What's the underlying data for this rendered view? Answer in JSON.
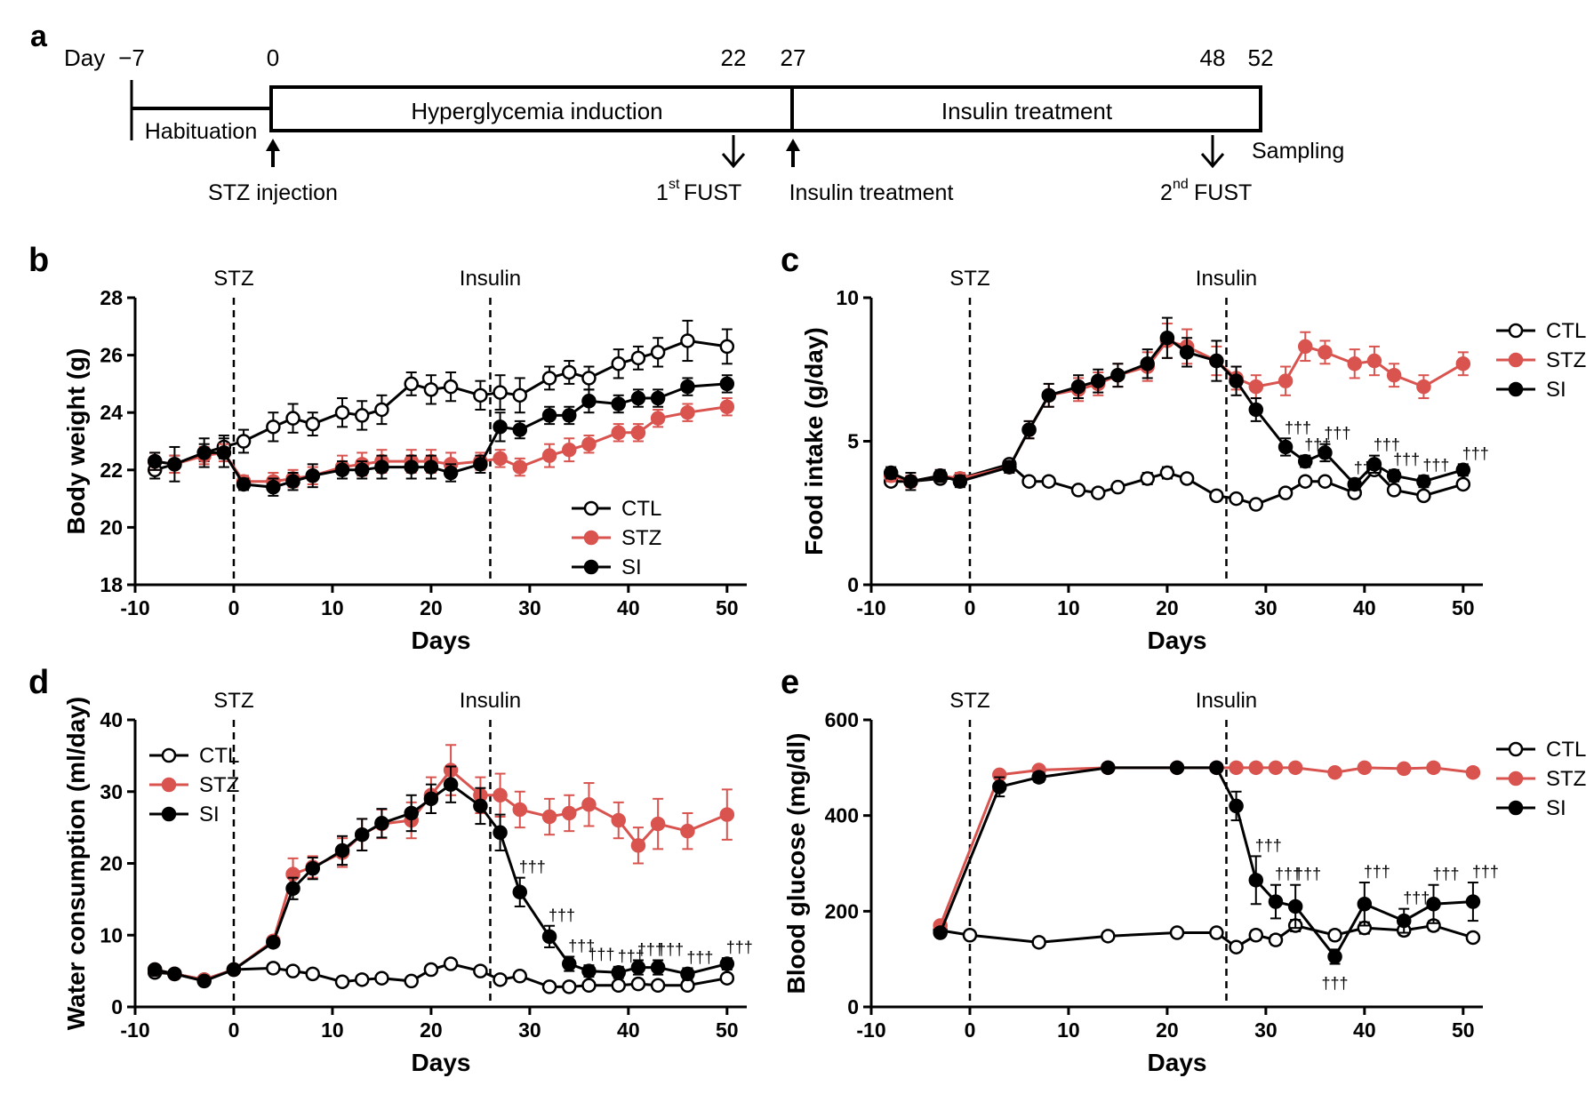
{
  "colors": {
    "ctl": "#000000",
    "stz": "#d9534f",
    "si": "#000000"
  },
  "timeline": {
    "panel_letter": "a",
    "day_label": "Day",
    "ticks": [
      "−7",
      "0",
      "22",
      "27",
      "48",
      "52"
    ],
    "habituation": "Habituation",
    "hyperglycemia": "Hyperglycemia induction",
    "insulin_phase": "Insulin treatment",
    "stz_injection": "STZ injection",
    "first_fust_sup": "st",
    "first_fust_num": "1",
    "first_fust_label": "FUST",
    "insulin_treatment": "Insulin treatment",
    "second_fust_num": "2",
    "second_fust_sup": "nd",
    "second_fust_label": "FUST",
    "sampling": "Sampling"
  },
  "chart_data": [
    {
      "panel": "b",
      "type": "line",
      "title": "",
      "xlabel": "Days",
      "ylabel": "Body weight (g)",
      "xlim": [
        -10,
        52
      ],
      "ylim": [
        18,
        28
      ],
      "xticks": [
        -10,
        0,
        10,
        20,
        30,
        40,
        50
      ],
      "yticks": [
        18,
        20,
        22,
        24,
        26,
        28
      ],
      "markers": [
        {
          "x": 0,
          "label": "STZ"
        },
        {
          "x": 26,
          "label": "Insulin"
        }
      ],
      "legend": "bottom-right",
      "dagger": "",
      "series": [
        {
          "name": "CTL",
          "x": [
            -8,
            -6,
            -3,
            -1,
            1,
            4,
            6,
            8,
            11,
            13,
            15,
            18,
            20,
            22,
            25,
            27,
            29,
            32,
            34,
            36,
            39,
            41,
            43,
            46,
            50
          ],
          "y": [
            22.0,
            22.2,
            22.6,
            22.8,
            23.0,
            23.5,
            23.8,
            23.6,
            24.0,
            23.9,
            24.1,
            25.0,
            24.8,
            24.9,
            24.6,
            24.7,
            24.6,
            25.2,
            25.4,
            25.2,
            25.7,
            25.9,
            26.1,
            26.5,
            26.3
          ],
          "err": [
            0.3,
            0.3,
            0.3,
            0.4,
            0.4,
            0.5,
            0.5,
            0.4,
            0.5,
            0.5,
            0.5,
            0.4,
            0.5,
            0.5,
            0.5,
            0.6,
            0.6,
            0.4,
            0.4,
            0.4,
            0.5,
            0.4,
            0.5,
            0.7,
            0.6
          ]
        },
        {
          "name": "STZ",
          "x": [
            -8,
            -6,
            -3,
            -1,
            1,
            4,
            6,
            8,
            11,
            13,
            15,
            18,
            20,
            22,
            25,
            27,
            29,
            32,
            34,
            36,
            39,
            41,
            43,
            46,
            50
          ],
          "y": [
            22.3,
            22.2,
            22.5,
            22.6,
            21.6,
            21.6,
            21.7,
            21.8,
            22.1,
            22.2,
            22.3,
            22.3,
            22.3,
            22.2,
            22.3,
            22.4,
            22.1,
            22.5,
            22.7,
            22.9,
            23.3,
            23.3,
            23.8,
            24.0,
            24.2
          ],
          "err": [
            0.3,
            0.3,
            0.3,
            0.3,
            0.2,
            0.3,
            0.3,
            0.3,
            0.4,
            0.4,
            0.4,
            0.4,
            0.4,
            0.4,
            0.3,
            0.3,
            0.3,
            0.4,
            0.4,
            0.3,
            0.3,
            0.3,
            0.3,
            0.3,
            0.3
          ]
        },
        {
          "name": "SI",
          "x": [
            -8,
            -6,
            -3,
            -1,
            1,
            4,
            6,
            8,
            11,
            13,
            15,
            18,
            20,
            22,
            25,
            27,
            29,
            32,
            34,
            36,
            39,
            41,
            43,
            46,
            50
          ],
          "y": [
            22.3,
            22.2,
            22.6,
            22.6,
            21.5,
            21.4,
            21.6,
            21.8,
            22.0,
            22.0,
            22.1,
            22.1,
            22.1,
            21.9,
            22.2,
            23.5,
            23.4,
            23.9,
            23.9,
            24.4,
            24.3,
            24.5,
            24.5,
            24.9,
            25.0
          ],
          "err": [
            0.3,
            0.6,
            0.5,
            0.5,
            0.2,
            0.3,
            0.3,
            0.4,
            0.3,
            0.3,
            0.4,
            0.4,
            0.4,
            0.3,
            0.3,
            0.5,
            0.3,
            0.3,
            0.3,
            0.4,
            0.3,
            0.3,
            0.3,
            0.3,
            0.3
          ]
        }
      ]
    },
    {
      "panel": "c",
      "type": "line",
      "title": "",
      "xlabel": "Days",
      "ylabel": "Food intake (g/day)",
      "xlim": [
        -10,
        52
      ],
      "ylim": [
        0,
        10
      ],
      "xticks": [
        -10,
        0,
        10,
        20,
        30,
        40,
        50
      ],
      "yticks": [
        0,
        5,
        10
      ],
      "markers": [
        {
          "x": 0,
          "label": "STZ"
        },
        {
          "x": 26,
          "label": "Insulin"
        }
      ],
      "legend": "right",
      "dagger": "†††",
      "daggers_si_x": [
        32,
        34,
        36,
        39,
        41,
        43,
        46,
        50
      ],
      "series": [
        {
          "name": "CTL",
          "x": [
            -8,
            -6,
            -3,
            -1,
            4,
            6,
            8,
            11,
            13,
            15,
            18,
            20,
            22,
            25,
            27,
            29,
            32,
            34,
            36,
            39,
            41,
            43,
            46,
            50
          ],
          "y": [
            3.6,
            3.6,
            3.7,
            3.7,
            4.2,
            3.6,
            3.6,
            3.3,
            3.2,
            3.4,
            3.7,
            3.9,
            3.7,
            3.1,
            3.0,
            2.8,
            3.2,
            3.6,
            3.6,
            3.2,
            4.0,
            3.3,
            3.1,
            3.5
          ],
          "err": [
            0.1,
            0.1,
            0.1,
            0.1,
            0.1,
            0.1,
            0.1,
            0.1,
            0.1,
            0.1,
            0.2,
            0.2,
            0.1,
            0.1,
            0.1,
            0.1,
            0.1,
            0.1,
            0.1,
            0.1,
            0.1,
            0.1,
            0.1,
            0.1
          ]
        },
        {
          "name": "STZ",
          "x": [
            -8,
            -6,
            -3,
            -1,
            4,
            6,
            8,
            11,
            13,
            15,
            18,
            20,
            22,
            25,
            27,
            29,
            32,
            34,
            36,
            39,
            41,
            43,
            46,
            50
          ],
          "y": [
            3.8,
            3.6,
            3.8,
            3.7,
            4.1,
            5.4,
            6.6,
            6.8,
            7.0,
            7.3,
            7.6,
            8.5,
            8.3,
            7.8,
            7.2,
            6.9,
            7.1,
            8.3,
            8.1,
            7.7,
            7.8,
            7.3,
            6.9,
            7.7
          ],
          "err": [
            0.2,
            0.2,
            0.2,
            0.2,
            0.2,
            0.3,
            0.4,
            0.4,
            0.4,
            0.4,
            0.5,
            0.6,
            0.6,
            0.5,
            0.4,
            0.4,
            0.5,
            0.5,
            0.4,
            0.5,
            0.5,
            0.4,
            0.4,
            0.4
          ]
        },
        {
          "name": "SI",
          "x": [
            -8,
            -6,
            -3,
            -1,
            4,
            6,
            8,
            11,
            13,
            15,
            18,
            20,
            22,
            25,
            27,
            29,
            32,
            34,
            36,
            39,
            41,
            43,
            46,
            50
          ],
          "y": [
            3.9,
            3.6,
            3.8,
            3.6,
            4.1,
            5.4,
            6.6,
            6.9,
            7.1,
            7.3,
            7.7,
            8.6,
            8.1,
            7.8,
            7.1,
            6.1,
            4.8,
            4.3,
            4.6,
            3.5,
            4.2,
            3.8,
            3.6,
            4.0
          ],
          "err": [
            0.2,
            0.3,
            0.2,
            0.2,
            0.2,
            0.3,
            0.4,
            0.4,
            0.4,
            0.4,
            0.5,
            0.7,
            0.5,
            0.7,
            0.5,
            0.4,
            0.3,
            0.2,
            0.3,
            0.2,
            0.3,
            0.2,
            0.2,
            0.2
          ]
        }
      ]
    },
    {
      "panel": "d",
      "type": "line",
      "title": "",
      "xlabel": "Days",
      "ylabel": "Water consumption (ml/day)",
      "xlim": [
        -10,
        52
      ],
      "ylim": [
        0,
        40
      ],
      "xticks": [
        -10,
        0,
        10,
        20,
        30,
        40,
        50
      ],
      "yticks": [
        0,
        10,
        20,
        30,
        40
      ],
      "markers": [
        {
          "x": 0,
          "label": "STZ"
        },
        {
          "x": 26,
          "label": "Insulin"
        }
      ],
      "legend": "top-left",
      "dagger": "†††",
      "daggers_si_x": [
        29,
        32,
        34,
        36,
        39,
        41,
        43,
        46,
        50
      ],
      "series": [
        {
          "name": "CTL",
          "x": [
            -8,
            -6,
            -3,
            0,
            4,
            6,
            8,
            11,
            13,
            15,
            18,
            20,
            22,
            25,
            27,
            29,
            32,
            34,
            36,
            39,
            41,
            43,
            46,
            50
          ],
          "y": [
            4.8,
            4.6,
            3.8,
            5.2,
            5.4,
            5.0,
            4.6,
            3.5,
            3.8,
            4.0,
            3.6,
            5.2,
            6.0,
            5.0,
            3.8,
            4.3,
            2.8,
            2.8,
            3.0,
            3.0,
            3.2,
            3.0,
            3.0,
            4.0
          ],
          "err": [
            0.3,
            0.3,
            0.3,
            0.3,
            0.3,
            0.3,
            0.3,
            0.3,
            0.3,
            0.3,
            0.3,
            0.3,
            0.4,
            0.3,
            0.3,
            0.3,
            0.3,
            0.3,
            0.3,
            0.3,
            0.3,
            0.3,
            0.3,
            0.3
          ]
        },
        {
          "name": "STZ",
          "x": [
            -8,
            -6,
            -3,
            0,
            4,
            6,
            8,
            11,
            13,
            15,
            18,
            20,
            22,
            25,
            27,
            29,
            32,
            34,
            36,
            39,
            41,
            43,
            46,
            50
          ],
          "y": [
            5.2,
            4.6,
            3.8,
            5.2,
            9.2,
            18.5,
            19.5,
            21.5,
            24.0,
            25.5,
            26.0,
            29.5,
            33.0,
            29.5,
            29.5,
            27.5,
            26.5,
            27.0,
            28.2,
            26.0,
            22.5,
            25.5,
            24.5,
            26.8
          ],
          "err": [
            0.4,
            0.4,
            0.4,
            0.4,
            0.6,
            2.2,
            1.5,
            2.0,
            2.2,
            2.0,
            2.5,
            2.5,
            3.5,
            2.5,
            3.0,
            2.5,
            2.5,
            2.5,
            3.0,
            2.5,
            2.5,
            3.5,
            2.5,
            3.5
          ]
        },
        {
          "name": "SI",
          "x": [
            -8,
            -6,
            -3,
            0,
            4,
            6,
            8,
            11,
            13,
            15,
            18,
            20,
            22,
            25,
            27,
            29,
            32,
            34,
            36,
            39,
            41,
            43,
            46,
            50
          ],
          "y": [
            5.2,
            4.6,
            3.6,
            5.2,
            9.0,
            16.5,
            19.3,
            21.8,
            24.0,
            25.6,
            27.0,
            29.0,
            31.0,
            28.0,
            24.3,
            16.0,
            9.8,
            6.0,
            5.0,
            4.8,
            5.5,
            5.5,
            4.6,
            6.0
          ],
          "err": [
            0.4,
            0.4,
            0.4,
            0.4,
            0.6,
            1.5,
            1.5,
            2.0,
            2.2,
            2.0,
            2.5,
            2.0,
            2.5,
            2.5,
            2.5,
            2.0,
            1.5,
            1.0,
            0.8,
            0.8,
            1.0,
            1.0,
            0.8,
            0.8
          ]
        }
      ]
    },
    {
      "panel": "e",
      "type": "line",
      "title": "",
      "xlabel": "Days",
      "ylabel": "Blood glucose (mg/dl)",
      "xlim": [
        -10,
        52
      ],
      "ylim": [
        0,
        600
      ],
      "xticks": [
        -10,
        0,
        10,
        20,
        30,
        40,
        50
      ],
      "yticks": [
        0,
        200,
        400,
        600
      ],
      "markers": [
        {
          "x": 0,
          "label": "STZ"
        },
        {
          "x": 26,
          "label": "Insulin"
        }
      ],
      "legend": "right",
      "dagger": "†††",
      "daggers_si_x": [
        28,
        29,
        31,
        33,
        40,
        44,
        47,
        51
      ],
      "daggers_below_x": [
        37
      ],
      "series": [
        {
          "name": "CTL",
          "x": [
            -3,
            0,
            7,
            14,
            21,
            25,
            27,
            29,
            31,
            33,
            37,
            40,
            44,
            47,
            51
          ],
          "y": [
            160,
            150,
            135,
            148,
            155,
            155,
            125,
            150,
            140,
            170,
            150,
            165,
            160,
            170,
            145
          ],
          "err": [
            5,
            5,
            5,
            5,
            5,
            5,
            8,
            10,
            10,
            12,
            10,
            12,
            10,
            10,
            8
          ]
        },
        {
          "name": "STZ",
          "x": [
            -3,
            3,
            7,
            14,
            21,
            25,
            27,
            29,
            31,
            33,
            37,
            40,
            44,
            47,
            51
          ],
          "y": [
            170,
            485,
            495,
            500,
            500,
            500,
            500,
            500,
            500,
            500,
            490,
            500,
            498,
            500,
            490
          ],
          "err": [
            8,
            8,
            5,
            0,
            0,
            0,
            0,
            0,
            0,
            0,
            5,
            5,
            5,
            5,
            5
          ]
        },
        {
          "name": "SI",
          "x": [
            -3,
            3,
            7,
            14,
            21,
            25,
            27,
            29,
            31,
            33,
            37,
            40,
            44,
            47,
            51
          ],
          "y": [
            155,
            460,
            480,
            500,
            500,
            500,
            420,
            265,
            220,
            210,
            105,
            215,
            180,
            215,
            220
          ],
          "err": [
            8,
            20,
            10,
            0,
            0,
            0,
            30,
            50,
            35,
            45,
            15,
            45,
            25,
            40,
            40
          ]
        }
      ]
    }
  ]
}
